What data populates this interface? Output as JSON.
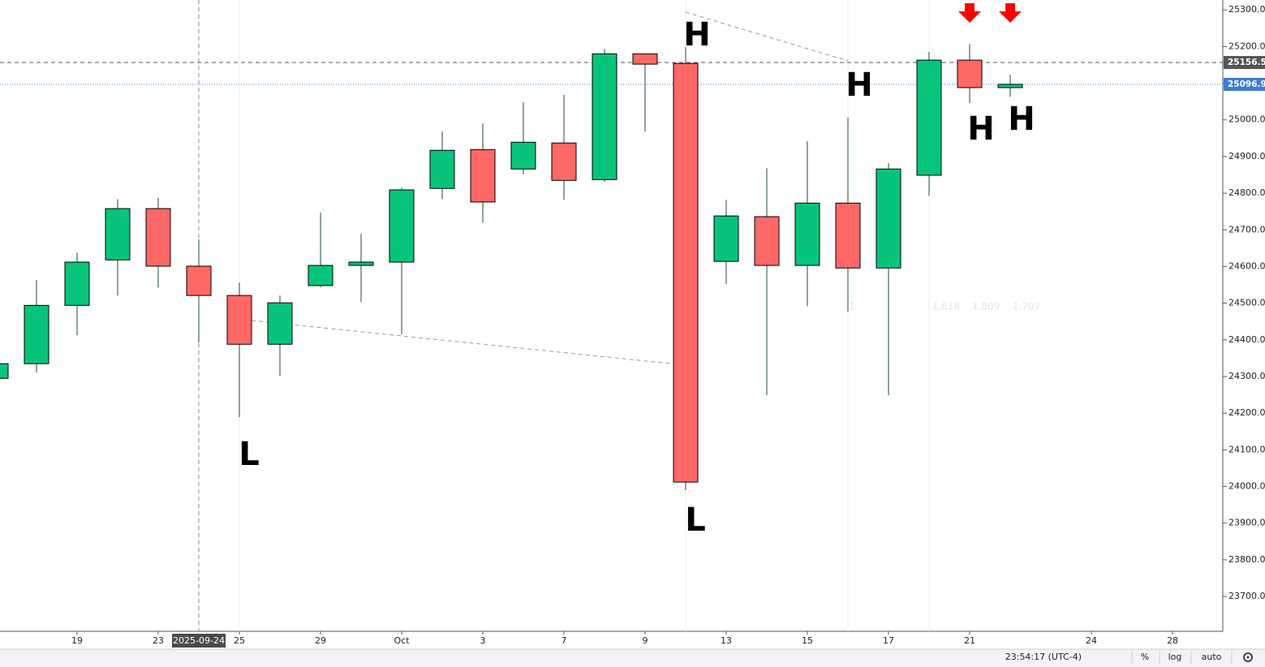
{
  "chart_data": {
    "type": "candlestick",
    "categories": [
      null,
      null,
      "19",
      null,
      "23",
      null,
      "25",
      null,
      "29",
      null,
      "Oct",
      null,
      "3",
      null,
      "7",
      null,
      "9",
      null,
      "13",
      null,
      "15",
      null,
      "17",
      null,
      "21",
      null,
      null,
      "24",
      null,
      "28"
    ],
    "open": [
      24295,
      24335,
      24494,
      24618,
      24758,
      24601,
      24521,
      24388,
      24548,
      24603,
      24612,
      24813,
      24919,
      24866,
      24937,
      24837,
      25180,
      25154,
      24614,
      24736,
      24603,
      24773,
      24596,
      24849,
      25163,
      25088,
      null,
      null,
      null,
      null
    ],
    "high": [
      24335,
      24563,
      24638,
      24784,
      24787,
      24674,
      24556,
      24521,
      24747,
      24689,
      24815,
      24968,
      24990,
      25048,
      25068,
      25194,
      25180,
      25198,
      24782,
      24868,
      24942,
      25006,
      24882,
      25185,
      25207,
      25123,
      null,
      null,
      null,
      null
    ],
    "low": [
      24295,
      24311,
      24413,
      24521,
      24543,
      24393,
      24189,
      24302,
      24543,
      24503,
      24415,
      24784,
      24720,
      24851,
      24782,
      24831,
      24968,
      23990,
      24552,
      24249,
      24492,
      24477,
      24249,
      24793,
      25046,
      25063,
      null,
      null,
      null,
      null
    ],
    "close": [
      24335,
      24494,
      24612,
      24758,
      24601,
      24521,
      24388,
      24501,
      24603,
      24612,
      24809,
      24917,
      24776,
      24939,
      24835,
      25180,
      25152,
      24012,
      24738,
      24603,
      24773,
      24596,
      24866,
      25163,
      25088,
      25097,
      null,
      null,
      null,
      null
    ],
    "up_color": "#08c47b",
    "down_color": "#fe6866",
    "ylim": [
      23605,
      25327
    ],
    "yticks": [
      {
        "value": 23700,
        "label": "23700.0"
      },
      {
        "value": 23800,
        "label": "23800.0"
      },
      {
        "value": 23900,
        "label": "23900.0"
      },
      {
        "value": 24000,
        "label": "24000.0"
      },
      {
        "value": 24100,
        "label": "24100.0"
      },
      {
        "value": 24200,
        "label": "24200.0"
      },
      {
        "value": 24300,
        "label": "24300.0"
      },
      {
        "value": 24400,
        "label": "24400.0"
      },
      {
        "value": 24500,
        "label": "24500.0"
      },
      {
        "value": 24600,
        "label": "24600.0"
      },
      {
        "value": 24700,
        "label": "24700.0"
      },
      {
        "value": 24800,
        "label": "24800.0"
      },
      {
        "value": 24900,
        "label": "24900.0"
      },
      {
        "value": 25000,
        "label": "25000.0"
      },
      {
        "value": 25100,
        "label": "25100.0"
      },
      {
        "value": 25200,
        "label": "25200.0"
      },
      {
        "value": 25300,
        "label": "25300.0"
      }
    ],
    "grid": false,
    "log_scale": false,
    "price_lines": [
      {
        "value": 25156.5,
        "color": "#555555"
      },
      {
        "value": 25096.9,
        "color": "#3d7bd9"
      }
    ],
    "crosshair_label": "2025-09-24",
    "annotations": [
      "H",
      "H",
      "H",
      "H",
      "L",
      "L"
    ],
    "fib_labels": [
      "1",
      "1.618",
      "1.809",
      "1.707"
    ]
  },
  "toolbar": {
    "time": "23:54:17 (UTC-4)",
    "percent": "%",
    "log": "log",
    "auto": "auto"
  }
}
